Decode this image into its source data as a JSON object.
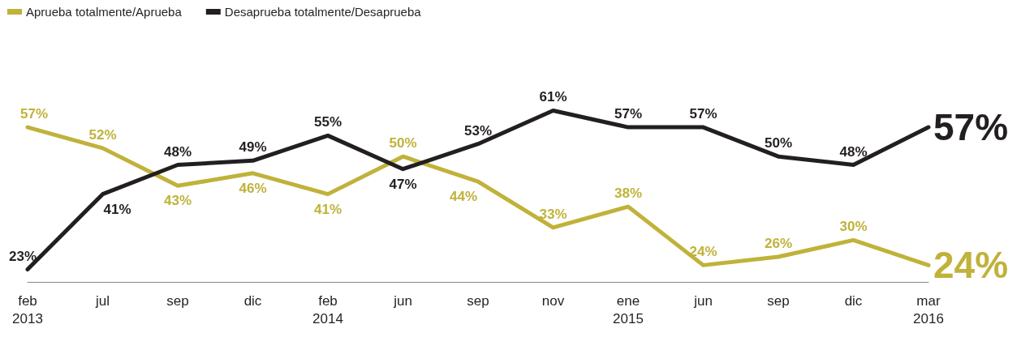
{
  "chart_data": {
    "type": "line",
    "categories": [
      "feb\n2013",
      "jul",
      "sep",
      "dic",
      "feb\n2014",
      "jun",
      "sep",
      "nov",
      "ene\n2015",
      "jun",
      "sep",
      "dic",
      "mar\n2016"
    ],
    "series": [
      {
        "name": "Aprueba totalmente/Aprueba",
        "color": "#c0b23a",
        "values": [
          57,
          52,
          43,
          46,
          41,
          50,
          44,
          33,
          38,
          24,
          26,
          30,
          24
        ],
        "value_labels": [
          "57%",
          "52%",
          "43%",
          "46%",
          "41%",
          "50%",
          "44%",
          "33%",
          "38%",
          "24%",
          "26%",
          "30%",
          "24%"
        ]
      },
      {
        "name": "Desaprueba totalmente/Desaprueba",
        "color": "#231f20",
        "values": [
          23,
          41,
          48,
          49,
          55,
          47,
          53,
          61,
          57,
          57,
          50,
          48,
          57
        ],
        "value_labels": [
          "23%",
          "41%",
          "48%",
          "49%",
          "55%",
          "47%",
          "53%",
          "61%",
          "57%",
          "57%",
          "50%",
          "48%",
          "57%"
        ]
      }
    ],
    "legend": "top left",
    "marker": "none",
    "line_style": "solid"
  }
}
